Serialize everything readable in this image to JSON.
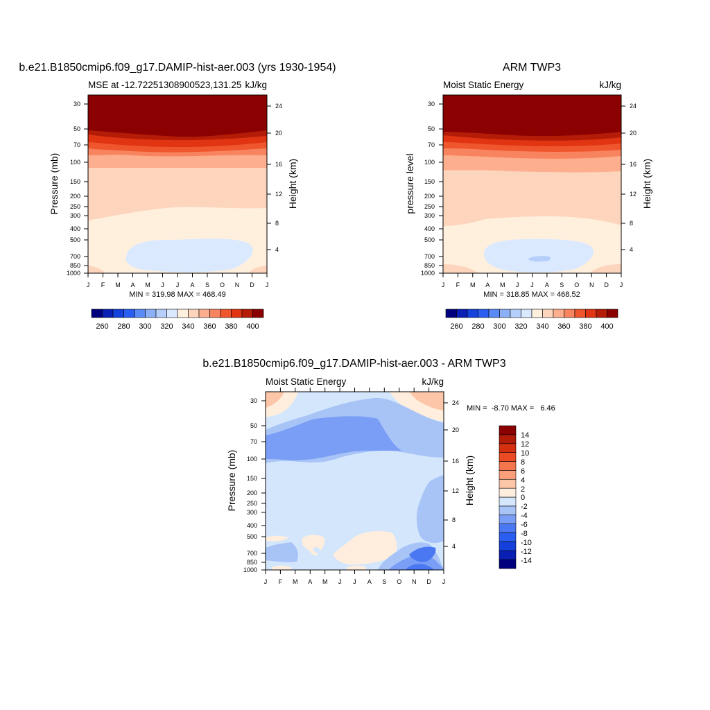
{
  "chart_data": [
    {
      "type": "heatmap",
      "title": "b.e21.B1850cmip6.f09_g17.DAMIP-hist-aer.003 (yrs 1930-1954)",
      "subtitle_left": "MSE at -12.72251308900523,131.25",
      "units": "kJ/kg",
      "ylabel": "Pressure (mb)",
      "ylabel_right": "Height (km)",
      "x_tick_labels": [
        "J",
        "F",
        "M",
        "A",
        "M",
        "J",
        "J",
        "A",
        "S",
        "O",
        "N",
        "D",
        "J"
      ],
      "y_tick_labels": [
        "30",
        "50",
        "70",
        "100",
        "150",
        "200",
        "250",
        "300",
        "400",
        "500",
        "700",
        "850",
        "1000"
      ],
      "y_right_tick_labels": [
        "24",
        "20",
        "16",
        "12",
        "8",
        "4"
      ],
      "stats": "MIN = 319.98 MAX = 468.49",
      "colorbar_labels": [
        "260",
        "280",
        "300",
        "320",
        "340",
        "360",
        "380",
        "400"
      ]
    },
    {
      "type": "heatmap",
      "title": "ARM TWP3",
      "subtitle_left": "Moist Static Energy",
      "units": "kJ/kg",
      "ylabel": "pressure level",
      "ylabel_right": "Height (km)",
      "x_tick_labels": [
        "J",
        "F",
        "M",
        "A",
        "M",
        "J",
        "J",
        "A",
        "S",
        "O",
        "N",
        "D",
        "J"
      ],
      "y_tick_labels": [
        "30",
        "50",
        "70",
        "100",
        "150",
        "200",
        "250",
        "300",
        "400",
        "500",
        "700",
        "850",
        "1000"
      ],
      "y_right_tick_labels": [
        "24",
        "20",
        "16",
        "12",
        "8",
        "4"
      ],
      "stats": "MIN = 318.85 MAX = 468.52",
      "colorbar_labels": [
        "260",
        "280",
        "300",
        "320",
        "340",
        "360",
        "380",
        "400"
      ]
    },
    {
      "type": "heatmap",
      "title": "b.e21.B1850cmip6.f09_g17.DAMIP-hist-aer.003 - ARM TWP3",
      "subtitle_left": "Moist Static Energy",
      "units": "kJ/kg",
      "ylabel": "Pressure (mb)",
      "ylabel_right": "Height (km)",
      "x_tick_labels": [
        "J",
        "F",
        "M",
        "A",
        "M",
        "J",
        "J",
        "A",
        "S",
        "O",
        "N",
        "D",
        "J"
      ],
      "y_tick_labels": [
        "30",
        "50",
        "70",
        "100",
        "150",
        "200",
        "250",
        "300",
        "400",
        "500",
        "700",
        "850",
        "1000"
      ],
      "y_right_tick_labels": [
        "24",
        "20",
        "16",
        "12",
        "8",
        "4"
      ],
      "stats": "MIN =  -8.70 MAX =   6.46",
      "colorbar_labels": [
        "14",
        "12",
        "10",
        "8",
        "6",
        "4",
        "2",
        "0",
        "-2",
        "-4",
        "-6",
        "-8",
        "-10",
        "-12",
        "-14"
      ]
    }
  ],
  "colors": {
    "absolute_scale": [
      "#00007f",
      "#0a1fb4",
      "#1440dc",
      "#2a5ef0",
      "#5a8af5",
      "#8cb0f5",
      "#b6cffa",
      "#dbe9ff",
      "#fff0de",
      "#fdd5bd",
      "#fcae8e",
      "#f7845e",
      "#f0562e",
      "#e03412",
      "#b41c08",
      "#8b0000"
    ],
    "difference_scale": [
      "#00007f",
      "#0a1fb4",
      "#1440dc",
      "#2a5ef0",
      "#4a78f2",
      "#7a9ef5",
      "#a8c4f7",
      "#d4e6fc",
      "#ffeedd",
      "#fdc6a8",
      "#fb9f7a",
      "#f5764c",
      "#eb4b22",
      "#d2300e",
      "#b01c08",
      "#8b0000"
    ]
  }
}
